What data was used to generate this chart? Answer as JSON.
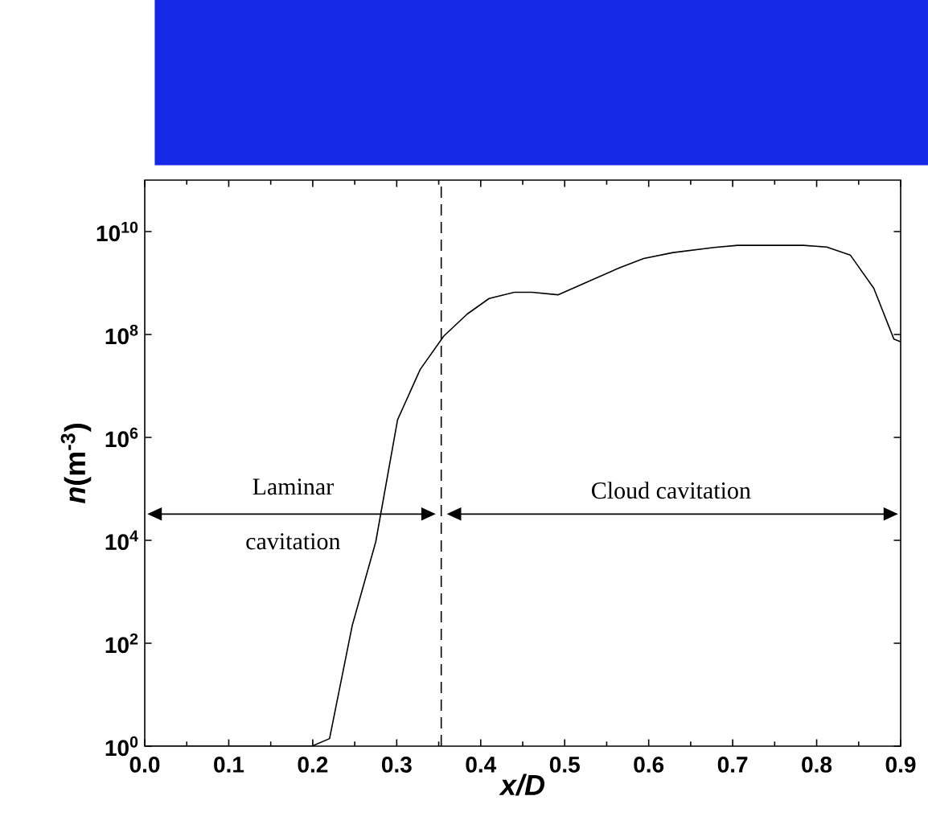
{
  "chart_data": {
    "type": "line",
    "xlabel": "x/D",
    "ylabel": "*n*(m$^{-3}$)",
    "x": [
      0,
      0.199,
      0.22,
      0.247,
      0.275,
      0.301,
      0.328,
      0.356,
      0.384,
      0.41,
      0.44,
      0.461,
      0.492,
      0.524,
      0.566,
      0.594,
      0.629,
      0.678,
      0.706,
      0.784,
      0.812,
      0.84,
      0.868,
      0.892,
      0.9
    ],
    "values": [
      1,
      1,
      1.4,
      220,
      9300,
      2200000.0,
      21000000.0,
      93000000.0,
      250000000.0,
      500000000.0,
      660000000.0,
      660000000.0,
      590000000.0,
      1000000000.0,
      2000000000.0,
      3000000000.0,
      3900000000.0,
      4900000000.0,
      5400000000.0,
      5400000000.0,
      5000000000.0,
      3500000000.0,
      790000000.0,
      81000000.0,
      72000000.0
    ],
    "color": "#000000",
    "log": "y",
    "marker": "none",
    "line_style": "solid",
    "grid": false,
    "xlim": [
      0,
      0.9
    ],
    "ylim": [
      1,
      100000000000.0
    ],
    "xticks": [
      {
        "value": 0,
        "label": "0.0"
      },
      0.1,
      0.2,
      0.3,
      0.4,
      0.5,
      0.6,
      0.7,
      0.8,
      0.9
    ],
    "yticks": [
      {
        "value": 1,
        "label": "10$^{0}$"
      },
      {
        "value": 100,
        "label": "10$^{2}$"
      },
      {
        "value": 10000,
        "label": "10$^{4}$"
      },
      {
        "value": 1000000,
        "label": "10$^{6}$"
      },
      {
        "value": 100000000,
        "label": "10$^{8}$"
      },
      {
        "value": 10000000000,
        "label": "10$^{10}$"
      }
    ],
    "ref_lines": [
      {
        "axis": "x",
        "value": 0.353,
        "line_style": "dashed",
        "color": "#000000"
      }
    ],
    "annotations": [
      "Laminar cavitation",
      "Cloud cavitation"
    ]
  }
}
